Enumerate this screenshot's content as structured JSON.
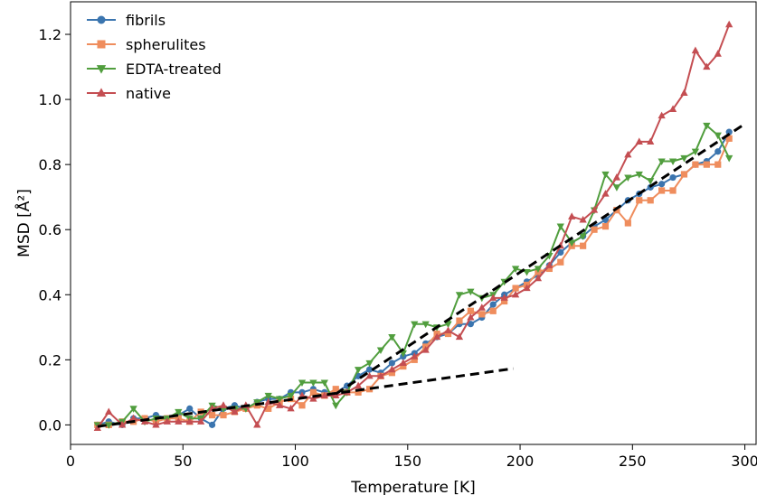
{
  "chart_data": {
    "type": "line",
    "xlabel": "Temperature [K]",
    "ylabel": "MSD [Å²]",
    "xlim": [
      0,
      305
    ],
    "ylim": [
      -0.06,
      1.3
    ],
    "xticks": [
      0,
      50,
      100,
      150,
      200,
      250,
      300
    ],
    "yticks": [
      0.0,
      0.2,
      0.4,
      0.6,
      0.8,
      1.0,
      1.2
    ],
    "ytick_labels": [
      "0.0",
      "0.2",
      "0.4",
      "0.6",
      "0.8",
      "1.0",
      "1.2"
    ],
    "legend_position": "top-left",
    "x": [
      12,
      17,
      23,
      28,
      33,
      38,
      43,
      48,
      53,
      58,
      63,
      68,
      73,
      78,
      83,
      88,
      93,
      98,
      103,
      108,
      113,
      118,
      123,
      128,
      133,
      138,
      143,
      148,
      153,
      158,
      163,
      168,
      173,
      178,
      183,
      188,
      193,
      198,
      203,
      208,
      213,
      218,
      223,
      228,
      233,
      238,
      243,
      248,
      253,
      258,
      263,
      268,
      273,
      278,
      283,
      288,
      293
    ],
    "series": [
      {
        "name": "fibrils",
        "color": "#3b75af",
        "marker": "circle",
        "values": [
          0.0,
          0.01,
          0.0,
          0.02,
          0.02,
          0.03,
          0.02,
          0.03,
          0.05,
          0.02,
          0.0,
          0.05,
          0.06,
          0.05,
          0.07,
          0.08,
          0.08,
          0.1,
          0.1,
          0.11,
          0.1,
          0.1,
          0.12,
          0.15,
          0.17,
          0.16,
          0.19,
          0.21,
          0.22,
          0.25,
          0.27,
          0.28,
          0.31,
          0.31,
          0.33,
          0.37,
          0.4,
          0.42,
          0.44,
          0.46,
          0.49,
          0.53,
          0.56,
          0.58,
          0.61,
          0.63,
          0.66,
          0.69,
          0.71,
          0.73,
          0.74,
          0.76,
          0.77,
          0.8,
          0.81,
          0.84,
          0.9
        ]
      },
      {
        "name": "spherulites",
        "color": "#ef8d5d",
        "marker": "square",
        "values": [
          0.0,
          0.0,
          0.01,
          0.01,
          0.02,
          0.01,
          0.02,
          0.02,
          0.01,
          0.04,
          0.03,
          0.03,
          0.04,
          0.05,
          0.06,
          0.05,
          0.07,
          0.08,
          0.06,
          0.1,
          0.09,
          0.11,
          0.1,
          0.1,
          0.11,
          0.15,
          0.16,
          0.18,
          0.2,
          0.24,
          0.28,
          0.28,
          0.32,
          0.35,
          0.34,
          0.35,
          0.38,
          0.42,
          0.43,
          0.47,
          0.48,
          0.5,
          0.55,
          0.55,
          0.6,
          0.61,
          0.66,
          0.62,
          0.69,
          0.69,
          0.72,
          0.72,
          0.77,
          0.8,
          0.8,
          0.8,
          0.88
        ]
      },
      {
        "name": "EDTA-treated",
        "color": "#519e3e",
        "marker": "triangle-down",
        "values": [
          0.0,
          0.0,
          0.01,
          0.05,
          0.01,
          0.02,
          0.02,
          0.04,
          0.02,
          0.02,
          0.06,
          0.05,
          0.05,
          0.05,
          0.07,
          0.09,
          0.08,
          0.09,
          0.13,
          0.13,
          0.13,
          0.06,
          0.1,
          0.17,
          0.19,
          0.23,
          0.27,
          0.22,
          0.31,
          0.31,
          0.3,
          0.31,
          0.4,
          0.41,
          0.39,
          0.4,
          0.44,
          0.48,
          0.47,
          0.48,
          0.52,
          0.61,
          0.56,
          0.58,
          0.66,
          0.77,
          0.73,
          0.76,
          0.77,
          0.75,
          0.81,
          0.81,
          0.82,
          0.84,
          0.92,
          0.89,
          0.82
        ]
      },
      {
        "name": "native",
        "color": "#c44e52",
        "marker": "triangle-up",
        "values": [
          -0.01,
          0.04,
          0.0,
          0.02,
          0.01,
          0.0,
          0.01,
          0.01,
          0.01,
          0.01,
          0.05,
          0.06,
          0.04,
          0.06,
          0.0,
          0.07,
          0.06,
          0.05,
          0.09,
          0.08,
          0.09,
          0.09,
          0.1,
          0.12,
          0.15,
          0.15,
          0.17,
          0.19,
          0.21,
          0.23,
          0.27,
          0.29,
          0.27,
          0.33,
          0.36,
          0.39,
          0.39,
          0.4,
          0.42,
          0.45,
          0.49,
          0.55,
          0.64,
          0.63,
          0.66,
          0.71,
          0.76,
          0.83,
          0.87,
          0.87,
          0.95,
          0.97,
          1.02,
          1.15,
          1.1,
          1.14,
          1.23
        ]
      }
    ],
    "fit_lines": [
      {
        "name": "low-temperature fit",
        "color": "#000000",
        "style": "dashed",
        "x": [
          12,
          197
        ],
        "y": [
          -0.005,
          0.173
        ]
      },
      {
        "name": "high-temperature fit",
        "color": "#000000",
        "style": "dashed",
        "x": [
          118,
          300
        ],
        "y": [
          0.095,
          0.925
        ]
      }
    ]
  }
}
